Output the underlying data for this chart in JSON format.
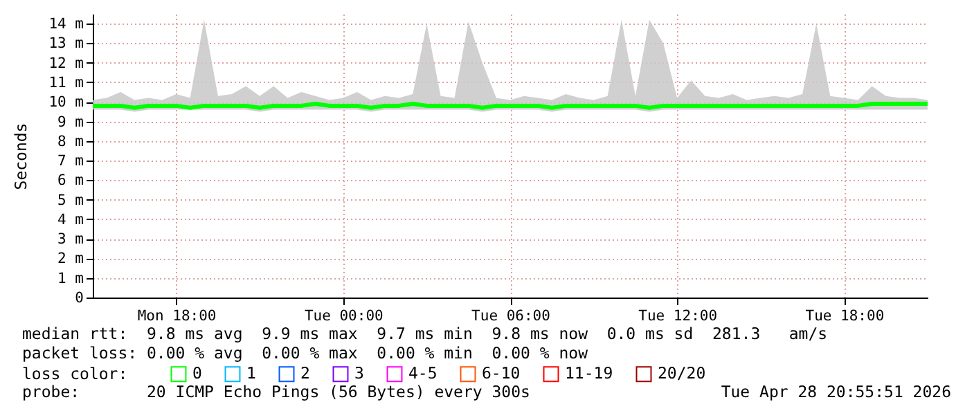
{
  "chart_data": {
    "type": "line",
    "ylabel": "Seconds",
    "legend_title": "loss color:",
    "legend": "bottom",
    "grid": true,
    "annotations": [
      "median rtt:  9.8 ms avg  9.9 ms max  9.7 ms min  9.8 ms now  0.0 ms sd  281.3   am/s",
      "packet loss: 0.00 % avg  0.00 % max  0.00 % min  0.00 % now",
      "probe:       20 ICMP Echo Pings (56 Bytes) every 300s",
      "Tue Apr 28 20:55:51 2026"
    ],
    "xlim": [
      "2026-04-27T15:00",
      "2026-04-28T21:00"
    ],
    "xticks": [
      {
        "value": "2026-04-27T18:00",
        "label": "Mon 18:00"
      },
      {
        "value": "2026-04-28T00:00",
        "label": "Tue 00:00"
      },
      {
        "value": "2026-04-28T06:00",
        "label": "Tue 06:00"
      },
      {
        "value": "2026-04-28T12:00",
        "label": "Tue 12:00"
      },
      {
        "value": "2026-04-28T18:00",
        "label": "Tue 18:00"
      }
    ],
    "ylim": [
      0,
      14.5
    ],
    "yticks": [
      0,
      {
        "value": 1,
        "label": "1 m"
      },
      {
        "value": 2,
        "label": "2 m"
      },
      {
        "value": 3,
        "label": "3 m"
      },
      {
        "value": 4,
        "label": "4 m"
      },
      {
        "value": 5,
        "label": "5 m"
      },
      {
        "value": 6,
        "label": "6 m"
      },
      {
        "value": 7,
        "label": "7 m"
      },
      {
        "value": 8,
        "label": "8 m"
      },
      {
        "value": 9,
        "label": "9 m"
      },
      {
        "value": 10,
        "label": "10 m"
      },
      {
        "value": 11,
        "label": "11 m"
      },
      {
        "value": 12,
        "label": "12 m"
      },
      {
        "value": 13,
        "label": "13 m"
      },
      {
        "value": 14,
        "label": "14 m"
      }
    ],
    "x": [
      "2026-04-27T15:00",
      "2026-04-27T15:30",
      "2026-04-27T16:00",
      "2026-04-27T16:30",
      "2026-04-27T17:00",
      "2026-04-27T17:30",
      "2026-04-27T18:00",
      "2026-04-27T18:30",
      "2026-04-27T19:00",
      "2026-04-27T19:30",
      "2026-04-27T20:00",
      "2026-04-27T20:30",
      "2026-04-27T21:00",
      "2026-04-27T21:30",
      "2026-04-27T22:00",
      "2026-04-27T22:30",
      "2026-04-27T23:00",
      "2026-04-27T23:30",
      "2026-04-28T00:00",
      "2026-04-28T00:30",
      "2026-04-28T01:00",
      "2026-04-28T01:30",
      "2026-04-28T02:00",
      "2026-04-28T02:30",
      "2026-04-28T03:00",
      "2026-04-28T03:30",
      "2026-04-28T04:00",
      "2026-04-28T04:30",
      "2026-04-28T05:00",
      "2026-04-28T05:30",
      "2026-04-28T06:00",
      "2026-04-28T06:30",
      "2026-04-28T07:00",
      "2026-04-28T07:30",
      "2026-04-28T08:00",
      "2026-04-28T08:30",
      "2026-04-28T09:00",
      "2026-04-28T09:30",
      "2026-04-28T10:00",
      "2026-04-28T10:30",
      "2026-04-28T11:00",
      "2026-04-28T11:30",
      "2026-04-28T12:00",
      "2026-04-28T12:30",
      "2026-04-28T13:00",
      "2026-04-28T13:30",
      "2026-04-28T14:00",
      "2026-04-28T14:30",
      "2026-04-28T15:00",
      "2026-04-28T15:30",
      "2026-04-28T16:00",
      "2026-04-28T16:30",
      "2026-04-28T17:00",
      "2026-04-28T17:30",
      "2026-04-28T18:00",
      "2026-04-28T18:30",
      "2026-04-28T19:00",
      "2026-04-28T19:30",
      "2026-04-28T20:00",
      "2026-04-28T20:30",
      "2026-04-28T21:00"
    ],
    "series": [
      {
        "name": "0",
        "color": "#00ff00",
        "values": [
          9.8,
          9.8,
          9.8,
          9.7,
          9.8,
          9.8,
          9.8,
          9.7,
          9.8,
          9.8,
          9.8,
          9.8,
          9.7,
          9.8,
          9.8,
          9.8,
          9.9,
          9.8,
          9.8,
          9.8,
          9.7,
          9.8,
          9.8,
          9.9,
          9.8,
          9.8,
          9.8,
          9.8,
          9.7,
          9.8,
          9.8,
          9.8,
          9.8,
          9.7,
          9.8,
          9.8,
          9.8,
          9.8,
          9.8,
          9.8,
          9.7,
          9.8,
          9.8,
          9.8,
          9.8,
          9.8,
          9.8,
          9.8,
          9.8,
          9.8,
          9.8,
          9.8,
          9.8,
          9.8,
          9.8,
          9.8,
          9.9,
          9.9,
          9.9,
          9.9,
          9.9
        ],
        "upper": [
          10.1,
          10.2,
          10.5,
          10.1,
          10.2,
          10.1,
          10.4,
          10.2,
          14.2,
          10.3,
          10.4,
          10.8,
          10.3,
          10.8,
          10.2,
          10.5,
          10.3,
          10.1,
          10.2,
          10.5,
          10.1,
          10.3,
          10.2,
          10.4,
          14.0,
          10.3,
          10.2,
          14.1,
          12.0,
          10.2,
          10.1,
          10.3,
          10.2,
          10.1,
          10.4,
          10.2,
          10.1,
          10.3,
          14.2,
          10.3,
          14.2,
          13.0,
          10.2,
          11.1,
          10.3,
          10.2,
          10.4,
          10.1,
          10.2,
          10.3,
          10.2,
          10.4,
          14.0,
          10.3,
          10.2,
          10.1,
          10.8,
          10.3,
          10.2,
          10.2,
          10.1
        ],
        "lower": [
          9.6,
          9.6,
          9.6,
          9.5,
          9.6,
          9.6,
          9.6,
          9.6,
          9.6,
          9.6,
          9.6,
          9.6,
          9.5,
          9.6,
          9.6,
          9.6,
          9.6,
          9.6,
          9.6,
          9.6,
          9.5,
          9.6,
          9.6,
          9.6,
          9.6,
          9.6,
          9.6,
          9.6,
          9.5,
          9.6,
          9.6,
          9.6,
          9.6,
          9.5,
          9.6,
          9.6,
          9.6,
          9.6,
          9.6,
          9.6,
          9.5,
          9.6,
          9.6,
          9.6,
          9.6,
          9.6,
          9.6,
          9.6,
          9.6,
          9.6,
          9.6,
          9.6,
          9.6,
          9.6,
          9.6,
          9.6,
          9.6,
          9.6,
          9.6,
          9.6,
          9.6
        ]
      },
      {
        "name": "1",
        "color": "#00b8ff",
        "values": [
          null,
          null,
          null,
          null,
          null,
          null,
          null,
          null,
          null,
          null,
          null,
          null,
          null,
          null,
          null,
          null,
          null,
          null,
          null,
          null,
          null,
          null,
          null,
          null,
          null,
          null,
          null,
          null,
          null,
          null,
          null,
          null,
          null,
          null,
          null,
          null,
          null,
          null,
          null,
          null,
          null,
          null,
          null,
          null,
          null,
          null,
          null,
          null,
          null,
          null,
          null,
          null,
          null,
          null,
          null,
          null,
          null,
          null,
          null,
          null,
          null
        ]
      },
      {
        "name": "2",
        "color": "#0059ff",
        "values": [
          null,
          null,
          null,
          null,
          null,
          null,
          null,
          null,
          null,
          null,
          null,
          null,
          null,
          null,
          null,
          null,
          null,
          null,
          null,
          null,
          null,
          null,
          null,
          null,
          null,
          null,
          null,
          null,
          null,
          null,
          null,
          null,
          null,
          null,
          null,
          null,
          null,
          null,
          null,
          null,
          null,
          null,
          null,
          null,
          null,
          null,
          null,
          null,
          null,
          null,
          null,
          null,
          null,
          null,
          null,
          null,
          null,
          null,
          null,
          null,
          null
        ]
      },
      {
        "name": "3",
        "color": "#7e00ff",
        "values": [
          null,
          null,
          null,
          null,
          null,
          null,
          null,
          null,
          null,
          null,
          null,
          null,
          null,
          null,
          null,
          null,
          null,
          null,
          null,
          null,
          null,
          null,
          null,
          null,
          null,
          null,
          null,
          null,
          null,
          null,
          null,
          null,
          null,
          null,
          null,
          null,
          null,
          null,
          null,
          null,
          null,
          null,
          null,
          null,
          null,
          null,
          null,
          null,
          null,
          null,
          null,
          null,
          null,
          null,
          null,
          null,
          null,
          null,
          null,
          null,
          null
        ]
      },
      {
        "name": "4-5",
        "color": "#ff00ff",
        "values": [
          null,
          null,
          null,
          null,
          null,
          null,
          null,
          null,
          null,
          null,
          null,
          null,
          null,
          null,
          null,
          null,
          null,
          null,
          null,
          null,
          null,
          null,
          null,
          null,
          null,
          null,
          null,
          null,
          null,
          null,
          null,
          null,
          null,
          null,
          null,
          null,
          null,
          null,
          null,
          null,
          null,
          null,
          null,
          null,
          null,
          null,
          null,
          null,
          null,
          null,
          null,
          null,
          null,
          null,
          null,
          null,
          null,
          null,
          null,
          null,
          null
        ]
      },
      {
        "name": "6-10",
        "color": "#ff5500",
        "values": [
          null,
          null,
          null,
          null,
          null,
          null,
          null,
          null,
          null,
          null,
          null,
          null,
          null,
          null,
          null,
          null,
          null,
          null,
          null,
          null,
          null,
          null,
          null,
          null,
          null,
          null,
          null,
          null,
          null,
          null,
          null,
          null,
          null,
          null,
          null,
          null,
          null,
          null,
          null,
          null,
          null,
          null,
          null,
          null,
          null,
          null,
          null,
          null,
          null,
          null,
          null,
          null,
          null,
          null,
          null,
          null,
          null,
          null,
          null,
          null,
          null
        ]
      },
      {
        "name": "11-19",
        "color": "#ff0000",
        "values": [
          null,
          null,
          null,
          null,
          null,
          null,
          null,
          null,
          null,
          null,
          null,
          null,
          null,
          null,
          null,
          null,
          null,
          null,
          null,
          null,
          null,
          null,
          null,
          null,
          null,
          null,
          null,
          null,
          null,
          null,
          null,
          null,
          null,
          null,
          null,
          null,
          null,
          null,
          null,
          null,
          null,
          null,
          null,
          null,
          null,
          null,
          null,
          null,
          null,
          null,
          null,
          null,
          null,
          null,
          null,
          null,
          null,
          null,
          null,
          null,
          null
        ]
      },
      {
        "name": "20/20",
        "color": "#a10000",
        "values": [
          null,
          null,
          null,
          null,
          null,
          null,
          null,
          null,
          null,
          null,
          null,
          null,
          null,
          null,
          null,
          null,
          null,
          null,
          null,
          null,
          null,
          null,
          null,
          null,
          null,
          null,
          null,
          null,
          null,
          null,
          null,
          null,
          null,
          null,
          null,
          null,
          null,
          null,
          null,
          null,
          null,
          null,
          null,
          null,
          null,
          null,
          null,
          null,
          null,
          null,
          null,
          null,
          null,
          null,
          null,
          null,
          null,
          null,
          null,
          null,
          null
        ]
      }
    ]
  }
}
